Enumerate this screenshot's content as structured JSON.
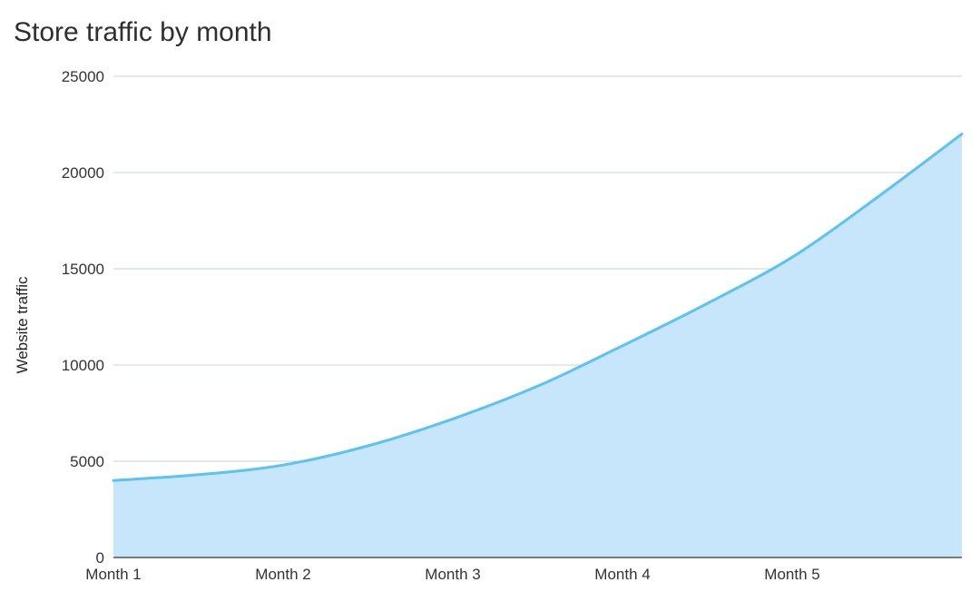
{
  "chart_data": {
    "type": "area",
    "title": "Store traffic by month",
    "xlabel": "",
    "ylabel": "Website traffic",
    "ylim": [
      0,
      25000
    ],
    "yticks": [
      0,
      5000,
      10000,
      15000,
      20000,
      25000
    ],
    "ytick_labels": [
      "0",
      "5000",
      "10000",
      "15000",
      "20000",
      "25000"
    ],
    "xlim": [
      1,
      6
    ],
    "categories": [
      "Month 1",
      "Month 2",
      "Month 3",
      "Month 4",
      "Month 5"
    ],
    "x": [
      1,
      1.5,
      2,
      2.5,
      3,
      3.5,
      4,
      4.5,
      5,
      5.5,
      6
    ],
    "values": [
      4000,
      4300,
      4800,
      5800,
      7200,
      8900,
      11000,
      13200,
      15600,
      18700,
      22000
    ],
    "grid": true,
    "legend": "none",
    "colors": {
      "line": "#5bc2f2",
      "fill": "#c7e6fb",
      "grid": "#c9d3d6",
      "axis": "#555555"
    }
  }
}
